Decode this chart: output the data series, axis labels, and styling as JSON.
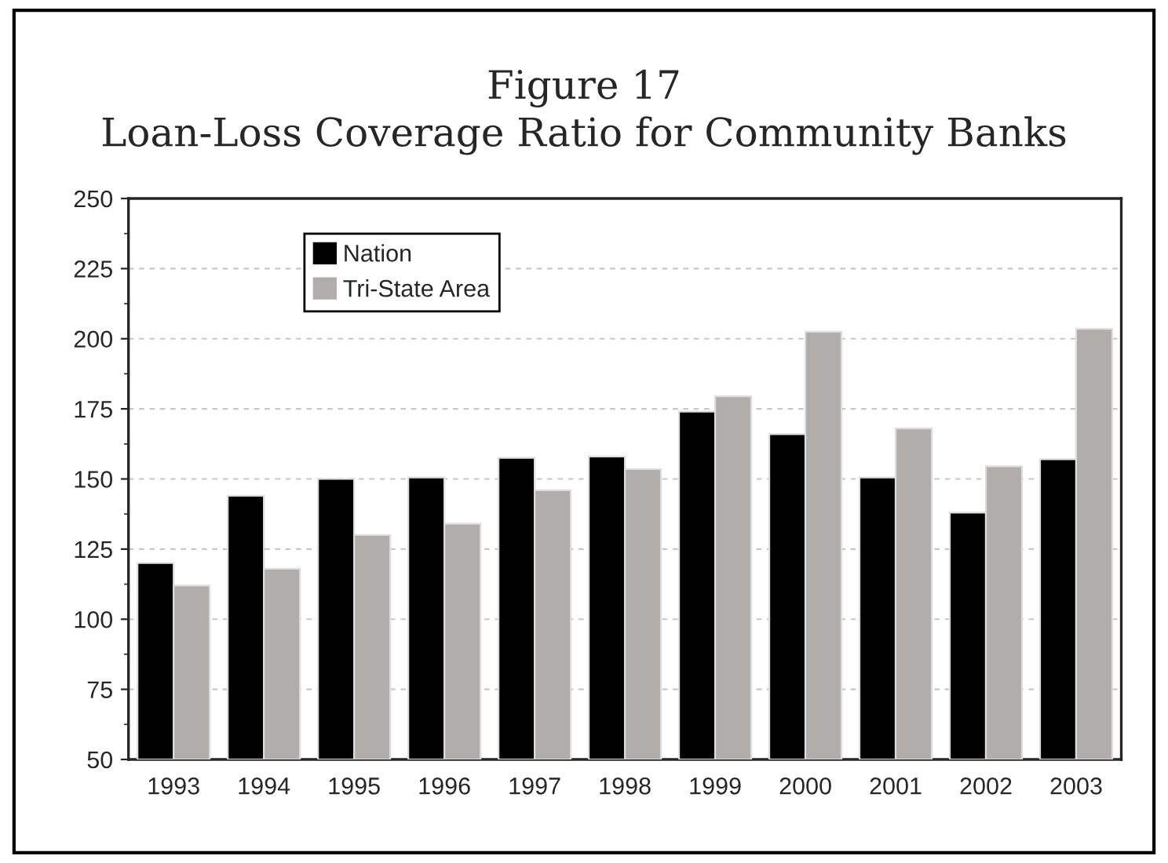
{
  "chart_data": {
    "type": "bar",
    "title": "Figure 17\nLoan-Loss Coverage Ratio for Community Banks",
    "categories": [
      "1993",
      "1994",
      "1995",
      "1996",
      "1997",
      "1998",
      "1999",
      "2000",
      "2001",
      "2002",
      "2003"
    ],
    "series": [
      {
        "name": "Nation",
        "color": "#000000",
        "values": [
          120,
          144,
          150,
          150.5,
          157.5,
          158,
          174,
          166,
          150.5,
          138,
          157
        ]
      },
      {
        "name": "Tri-State Area",
        "color": "#b0adaa",
        "values": [
          112,
          118,
          130,
          134,
          146,
          153.5,
          179.5,
          202.5,
          168,
          154.5,
          203.5
        ]
      }
    ],
    "ylim": [
      50,
      250
    ],
    "yticks": [
      50,
      75,
      100,
      125,
      150,
      175,
      200,
      225,
      250
    ],
    "grid": "y",
    "legend": "top left"
  }
}
